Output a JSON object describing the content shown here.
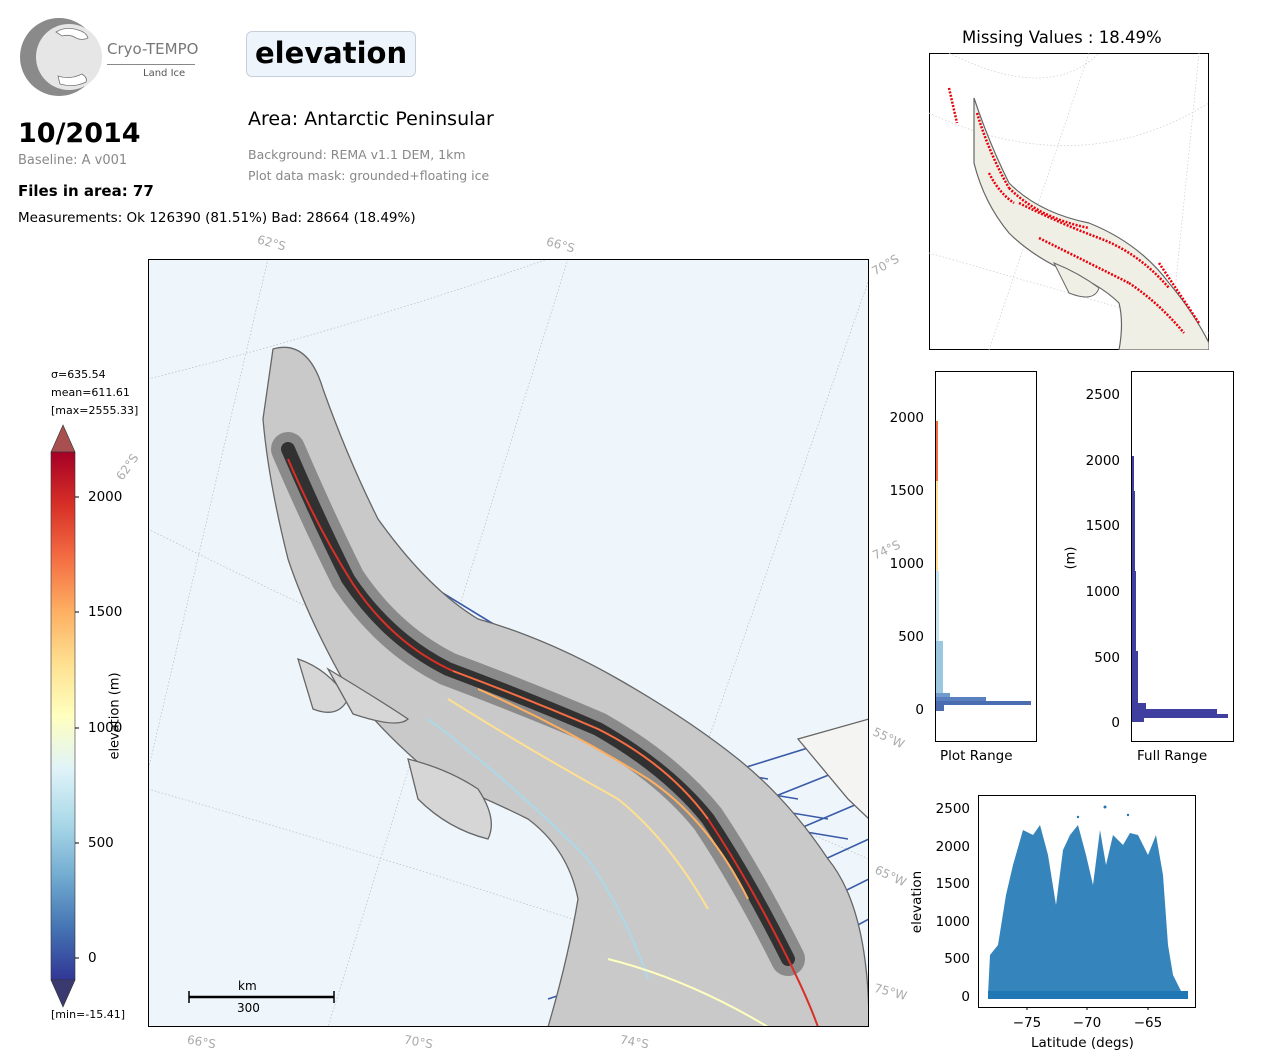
{
  "logo": {
    "title": "Cryo-TEMPO",
    "subtitle": "Land Ice"
  },
  "header": {
    "variable": "elevation",
    "date": "10/2014",
    "baseline": "Baseline: A v001",
    "files": "Files in area: 77",
    "measurements": "Measurements: Ok 126390 (81.51%) Bad: 28664 (18.49%)",
    "area": "Area: Antarctic Peninsular",
    "background": "Background: REMA v1.1 DEM, 1km",
    "mask": "Plot data mask: grounded+floating ice"
  },
  "colorbar": {
    "sigma": "σ=635.54",
    "mean": "mean=611.61",
    "max": "[max=2555.33]",
    "min": "[min=-15.41]",
    "label": "elevation (m)",
    "ticks": [
      "2000",
      "1500",
      "1000",
      "500",
      "0"
    ],
    "colors": [
      "#313695",
      "#4575b4",
      "#74add1",
      "#abd9e9",
      "#e0f3f8",
      "#ffffbf",
      "#fee090",
      "#fdae61",
      "#f46d43",
      "#d73027",
      "#a50026"
    ]
  },
  "main_map": {
    "lat_labels": [
      "62°S",
      "66°S",
      "70°S",
      "62°S",
      "74°S",
      "55°W",
      "65°W",
      "75°W",
      "66°S",
      "70°S",
      "74°S"
    ],
    "scale_unit": "km",
    "scale_value": "300",
    "ocean_color": "#eef6fc",
    "track_color": "#3a5ba8"
  },
  "inset": {
    "title": "Missing Values : 18.49%",
    "bad_color": "#e8000b"
  },
  "hist_plot": {
    "label": "Plot Range",
    "ticks": [
      "2000",
      "1500",
      "1000",
      "500",
      "0"
    ]
  },
  "hist_full": {
    "label": "Full Range",
    "ylabel": "(m)",
    "ticks": [
      "2500",
      "2000",
      "1500",
      "1000",
      "500",
      "0"
    ],
    "color": "#3f3fa0"
  },
  "scatter": {
    "xlabel": "Latitude (degs)",
    "ylabel": "elevation",
    "yticks": [
      "2500",
      "2000",
      "1500",
      "1000",
      "500",
      "0"
    ],
    "xticks": [
      "−75",
      "−70",
      "−65"
    ],
    "color": "#1f77b4"
  }
}
